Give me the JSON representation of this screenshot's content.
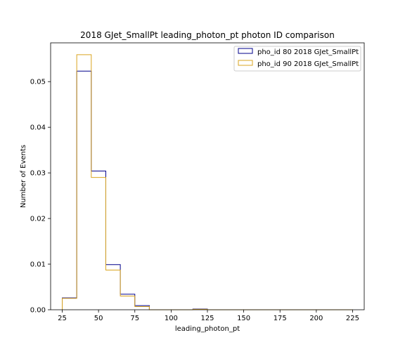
{
  "chart_data": {
    "type": "histogram",
    "title": "2018 GJet_SmallPt leading_photon_pt photon ID comparison",
    "xlabel": "leading_photon_pt",
    "ylabel": "Number of Events",
    "xlim": [
      17,
      233
    ],
    "ylim": [
      0,
      0.0585
    ],
    "xticks": [
      25,
      50,
      75,
      100,
      125,
      150,
      175,
      200,
      225
    ],
    "xtick_labels": [
      "25",
      "50",
      "75",
      "100",
      "125",
      "150",
      "175",
      "200",
      "225"
    ],
    "yticks": [
      0,
      0.01,
      0.02,
      0.03,
      0.04,
      0.05
    ],
    "ytick_labels": [
      "0.00",
      "0.01",
      "0.02",
      "0.03",
      "0.04",
      "0.05"
    ],
    "bin_edges": [
      25,
      35,
      45,
      55,
      65,
      75,
      85,
      95,
      105,
      115,
      125,
      135,
      145,
      155,
      165,
      175,
      185,
      195,
      205,
      215,
      225
    ],
    "legend_position": "top-right",
    "grid": false,
    "series": [
      {
        "name": "pho_id 80 2018 GJet_SmallPt",
        "color": "#00008b",
        "values": [
          0.0026,
          0.0523,
          0.0304,
          0.0099,
          0.0034,
          0.0009,
          0.0,
          0.0,
          0.0,
          0.00015,
          0.0,
          0.0,
          0.0,
          0.0,
          0.0,
          0.0,
          0.0,
          0.0,
          0.0,
          0.0
        ]
      },
      {
        "name": "pho_id 90 2018 GJet_SmallPt",
        "color": "#daa520",
        "values": [
          0.0025,
          0.0559,
          0.029,
          0.0087,
          0.003,
          0.0007,
          0.0,
          0.0,
          0.0,
          0.0001,
          0.0,
          0.0,
          0.0,
          0.0,
          0.0,
          0.0,
          0.0,
          0.0,
          0.0,
          0.0
        ]
      }
    ]
  }
}
